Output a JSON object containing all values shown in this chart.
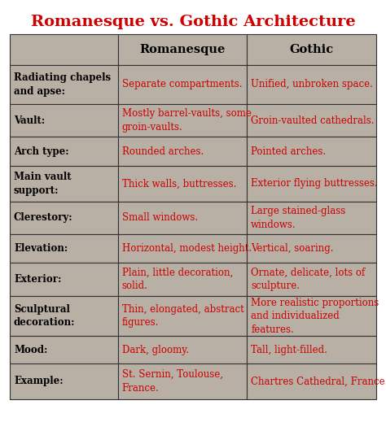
{
  "title": "Romanesque vs. Gothic Architecture",
  "title_color": "#cc0000",
  "cell_bg": "#b8afa5",
  "border_color": "#333333",
  "text_color_label": "#000000",
  "text_color_data": "#cc0000",
  "col_headers": [
    "",
    "Romanesque",
    "Gothic"
  ],
  "rows": [
    {
      "label": "Radiating chapels\nand apse:",
      "romanesque": "Separate compartments.",
      "gothic": "Unified, unbroken space."
    },
    {
      "label": "Vault:",
      "romanesque": "Mostly barrel-vaults, some\ngroin-vaults.",
      "gothic": "Groin-vaulted cathedrals."
    },
    {
      "label": "Arch type:",
      "romanesque": "Rounded arches.",
      "gothic": "Pointed arches."
    },
    {
      "label": "Main vault\nsupport:",
      "romanesque": "Thick walls, buttresses.",
      "gothic": "Exterior flying buttresses."
    },
    {
      "label": "Clerestory:",
      "romanesque": "Small windows.",
      "gothic": "Large stained-glass\nwindows."
    },
    {
      "label": "Elevation:",
      "romanesque": "Horizontal, modest height.",
      "gothic": "Vertical, soaring."
    },
    {
      "label": "Exterior:",
      "romanesque": "Plain, little decoration,\nsolid.",
      "gothic": "Ornate, delicate, lots of\nsculpture."
    },
    {
      "label": "Sculptural\ndecoration:",
      "romanesque": "Thin, elongated, abstract\nfigures.",
      "gothic": "More realistic proportions\nand individualized\nfeatures."
    },
    {
      "label": "Mood:",
      "romanesque": "Dark, gloomy.",
      "gothic": "Tall, light-filled."
    },
    {
      "label": "Example:",
      "romanesque": "St. Sernin, Toulouse,\nFrance.",
      "gothic": "Chartres Cathedral, France."
    }
  ],
  "figure_bg": "#ffffff",
  "title_fontsize": 14,
  "header_fontsize": 10.5,
  "label_fontsize": 8.5,
  "data_fontsize": 8.5
}
